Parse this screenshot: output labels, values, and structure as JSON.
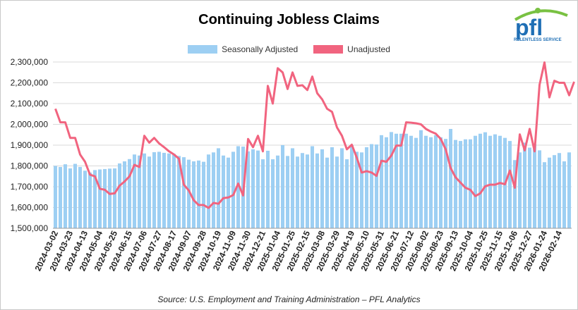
{
  "title": "Continuing Jobless Claims",
  "source": "Source: U.S. Employment and Training Administration – PFL Analytics",
  "logo": {
    "text": "pfl",
    "tagline": "RELENTLESS SERVICE"
  },
  "colors": {
    "sa": "#9dcff3",
    "nsa": "#f1647f",
    "grid": "#d9d9d9",
    "axis": "#999999"
  },
  "chart_data": {
    "type": "bar",
    "title": "Continuing Jobless Claims",
    "xlabel": "",
    "ylabel": "",
    "ylim": [
      1500000,
      2300000
    ],
    "yticks": [
      "1,500,000",
      "1,600,000",
      "1,700,000",
      "1,800,000",
      "1,900,000",
      "2,000,000",
      "2,100,000",
      "2,200,000",
      "2,300,000"
    ],
    "xtick_labels": [
      "2024-03-02",
      "2024-03-23",
      "2024-04-13",
      "2024-05-04",
      "2024-05-25",
      "2024-06-15",
      "2024-07-06",
      "2024-07-27",
      "2024-08-17",
      "2024-09-07",
      "2024-09-28",
      "2024-10-19",
      "2024-11-09",
      "2024-11-30",
      "2024-12-21",
      "2025-01-04",
      "2025-01-25",
      "2025-02-15",
      "2025-03-08",
      "2025-03-29",
      "2025-04-19",
      "2025-05-10",
      "2025-05-31",
      "2025-06-21",
      "2025-07-12",
      "2025-08-02",
      "2025-08-23",
      "2025-09-13",
      "2025-10-04",
      "2025-10-25",
      "2025-11-15",
      "2025-12-06",
      "2025-12-27",
      "2026-01-24",
      "2026-02-14"
    ],
    "grid": true,
    "legend": "top-center",
    "series": [
      {
        "name": "Seasonally Adjusted",
        "type": "bar",
        "values": [
          1800000,
          1795000,
          1808000,
          1788000,
          1810000,
          1795000,
          1777000,
          1768000,
          1780000,
          1783000,
          1785000,
          1787000,
          1788000,
          1812000,
          1822000,
          1833000,
          1855000,
          1850000,
          1860000,
          1845000,
          1866000,
          1868000,
          1863000,
          1860000,
          1858000,
          1848000,
          1842000,
          1830000,
          1822000,
          1826000,
          1820000,
          1855000,
          1865000,
          1885000,
          1850000,
          1840000,
          1868000,
          1895000,
          1893000,
          1870000,
          1880000,
          1874000,
          1832000,
          1873000,
          1832000,
          1850000,
          1900000,
          1848000,
          1885000,
          1845000,
          1862000,
          1855000,
          1895000,
          1860000,
          1880000,
          1840000,
          1890000,
          1845000,
          1885000,
          1832000,
          1900000,
          1868000,
          1865000,
          1890000,
          1905000,
          1903000,
          1948000,
          1938000,
          1963000,
          1955000,
          1955000,
          1955000,
          1945000,
          1935000,
          1972000,
          1945000,
          1938000,
          1948000,
          1938000,
          1930000,
          1978000,
          1925000,
          1920000,
          1928000,
          1928000,
          1945000,
          1955000,
          1962000,
          1945000,
          1952000,
          1945000,
          1935000,
          1920000,
          1828000,
          1865000,
          1912000,
          1888000,
          1905000,
          1875000,
          1818000,
          1840000,
          1852000,
          1862000,
          1822000,
          1865000
        ]
      },
      {
        "name": "Unadjusted",
        "type": "line",
        "values": [
          2075000,
          2010000,
          2010000,
          1935000,
          1935000,
          1855000,
          1820000,
          1758000,
          1750000,
          1690000,
          1685000,
          1665000,
          1668000,
          1705000,
          1725000,
          1750000,
          1805000,
          1795000,
          1945000,
          1912000,
          1935000,
          1908000,
          1890000,
          1870000,
          1855000,
          1835000,
          1710000,
          1682000,
          1635000,
          1612000,
          1612000,
          1598000,
          1622000,
          1618000,
          1645000,
          1648000,
          1660000,
          1715000,
          1658000,
          1930000,
          1890000,
          1945000,
          1870000,
          2185000,
          2100000,
          2270000,
          2250000,
          2170000,
          2250000,
          2185000,
          2188000,
          2165000,
          2230000,
          2150000,
          2120000,
          2075000,
          2060000,
          1985000,
          1945000,
          1880000,
          1902000,
          1840000,
          1768000,
          1775000,
          1768000,
          1752000,
          1825000,
          1820000,
          1850000,
          1898000,
          1898000,
          2010000,
          2008000,
          2005000,
          2000000,
          1978000,
          1965000,
          1955000,
          1930000,
          1880000,
          1790000,
          1745000,
          1720000,
          1695000,
          1685000,
          1655000,
          1668000,
          1702000,
          1710000,
          1710000,
          1718000,
          1712000,
          1778000,
          1695000,
          1952000,
          1875000,
          1978000,
          1870000,
          2190000,
          2298000,
          2130000,
          2210000,
          2200000,
          2200000,
          2140000,
          2205000
        ]
      }
    ]
  }
}
